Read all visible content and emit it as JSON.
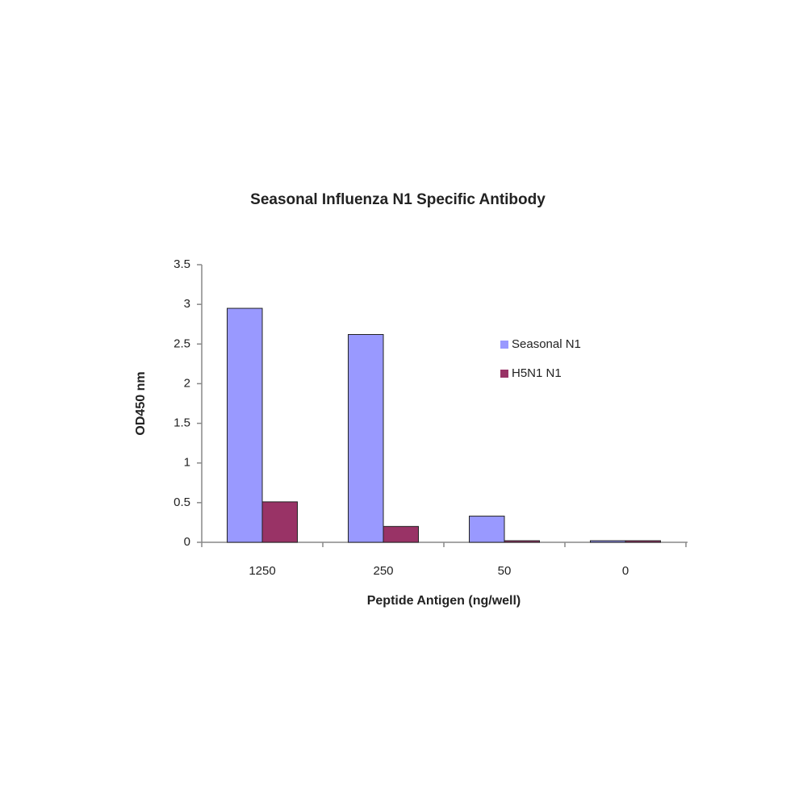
{
  "chart_data": {
    "type": "bar",
    "title": "Seasonal Influenza N1 Specific Antibody",
    "x_label": "Peptide Antigen (ng/well)",
    "y_label": "OD450 nm",
    "categories": [
      "1250",
      "250",
      "50",
      "0"
    ],
    "series": [
      {
        "name": "Seasonal N1",
        "color": "#9999ff",
        "values": [
          2.95,
          2.62,
          0.33,
          0.02
        ]
      },
      {
        "name": "H5N1 N1",
        "color": "#993366",
        "values": [
          0.51,
          0.2,
          0.02,
          0.02
        ]
      }
    ],
    "ylim": [
      0,
      3.5
    ],
    "yticks": [
      0,
      0.5,
      1,
      1.5,
      2,
      2.5,
      3,
      3.5
    ],
    "grid": false
  }
}
